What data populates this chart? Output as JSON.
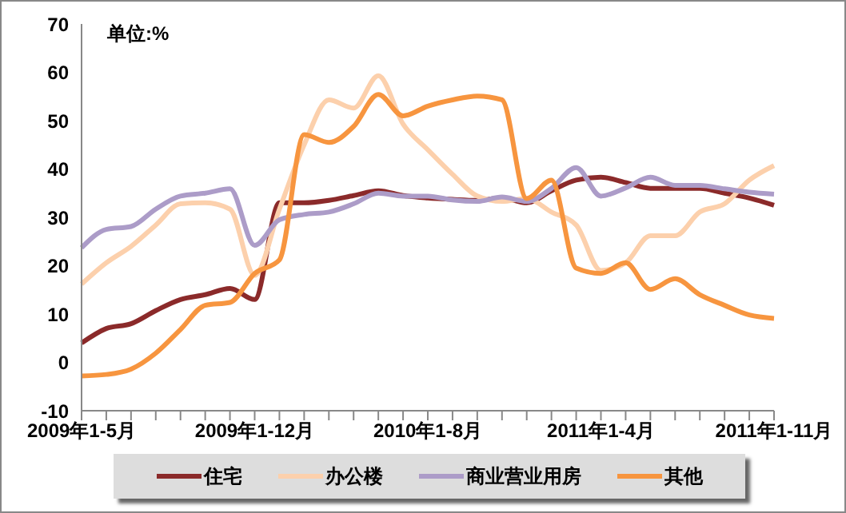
{
  "chart_data": {
    "type": "line",
    "ylabel": "单位:%",
    "categories": [
      "2009年1-5月",
      null,
      null,
      null,
      null,
      null,
      null,
      "2009年1-12月",
      null,
      null,
      null,
      null,
      null,
      null,
      "2010年1-8月",
      null,
      null,
      null,
      null,
      null,
      null,
      "2011年1-4月",
      null,
      null,
      null,
      null,
      null,
      null,
      "2011年1-11月"
    ],
    "series": [
      {
        "name": "住宅",
        "color": "#8b2a2a",
        "values": [
          4,
          7,
          8,
          10.7,
          13,
          14,
          15.3,
          13,
          33,
          33,
          33.5,
          34.5,
          35.5,
          34.5,
          34,
          33.7,
          33.5,
          34,
          33,
          35.5,
          37.7,
          38.3,
          37.2,
          36,
          36,
          36,
          35,
          34,
          32.5
        ]
      },
      {
        "name": "办公楼",
        "color": "#fcd0ac",
        "values": [
          16.2,
          20.6,
          24,
          28.4,
          32.8,
          33,
          31.7,
          18,
          31.7,
          45,
          54.3,
          52.6,
          59.3,
          49.3,
          44,
          38.9,
          34.4,
          33.3,
          33.9,
          31.1,
          28.4,
          19,
          20.6,
          26.2,
          26.2,
          31.1,
          32.8,
          37.7,
          40.7
        ]
      },
      {
        "name": "商业营业用房",
        "color": "#ac9cc8",
        "values": [
          23.7,
          27.5,
          28.1,
          31.7,
          34.4,
          35,
          35.9,
          24.2,
          29.5,
          30.6,
          31.1,
          32.8,
          35,
          34.4,
          34.4,
          33.6,
          33.3,
          34.2,
          33.3,
          36,
          40.3,
          34.4,
          36.1,
          38.3,
          36.6,
          36.6,
          35.9,
          35.2,
          34.8
        ]
      },
      {
        "name": "其他",
        "color": "#f7953f",
        "values": [
          -2.8,
          -2.5,
          -1.4,
          1.9,
          6.8,
          11.8,
          12.4,
          18.4,
          21.2,
          47.1,
          45.5,
          48.8,
          55.4,
          51,
          53,
          54.3,
          55.1,
          54.3,
          33.9,
          37.7,
          19.5,
          18.4,
          20.6,
          15.1,
          17.3,
          14,
          11.8,
          9.8,
          9.1
        ]
      }
    ],
    "ylim": [
      -10,
      70
    ],
    "yticks": [
      -10,
      0,
      10,
      20,
      30,
      40,
      50,
      60,
      70
    ],
    "grid": false,
    "legend": "bottom",
    "marker": "none",
    "line_style": "solid"
  }
}
